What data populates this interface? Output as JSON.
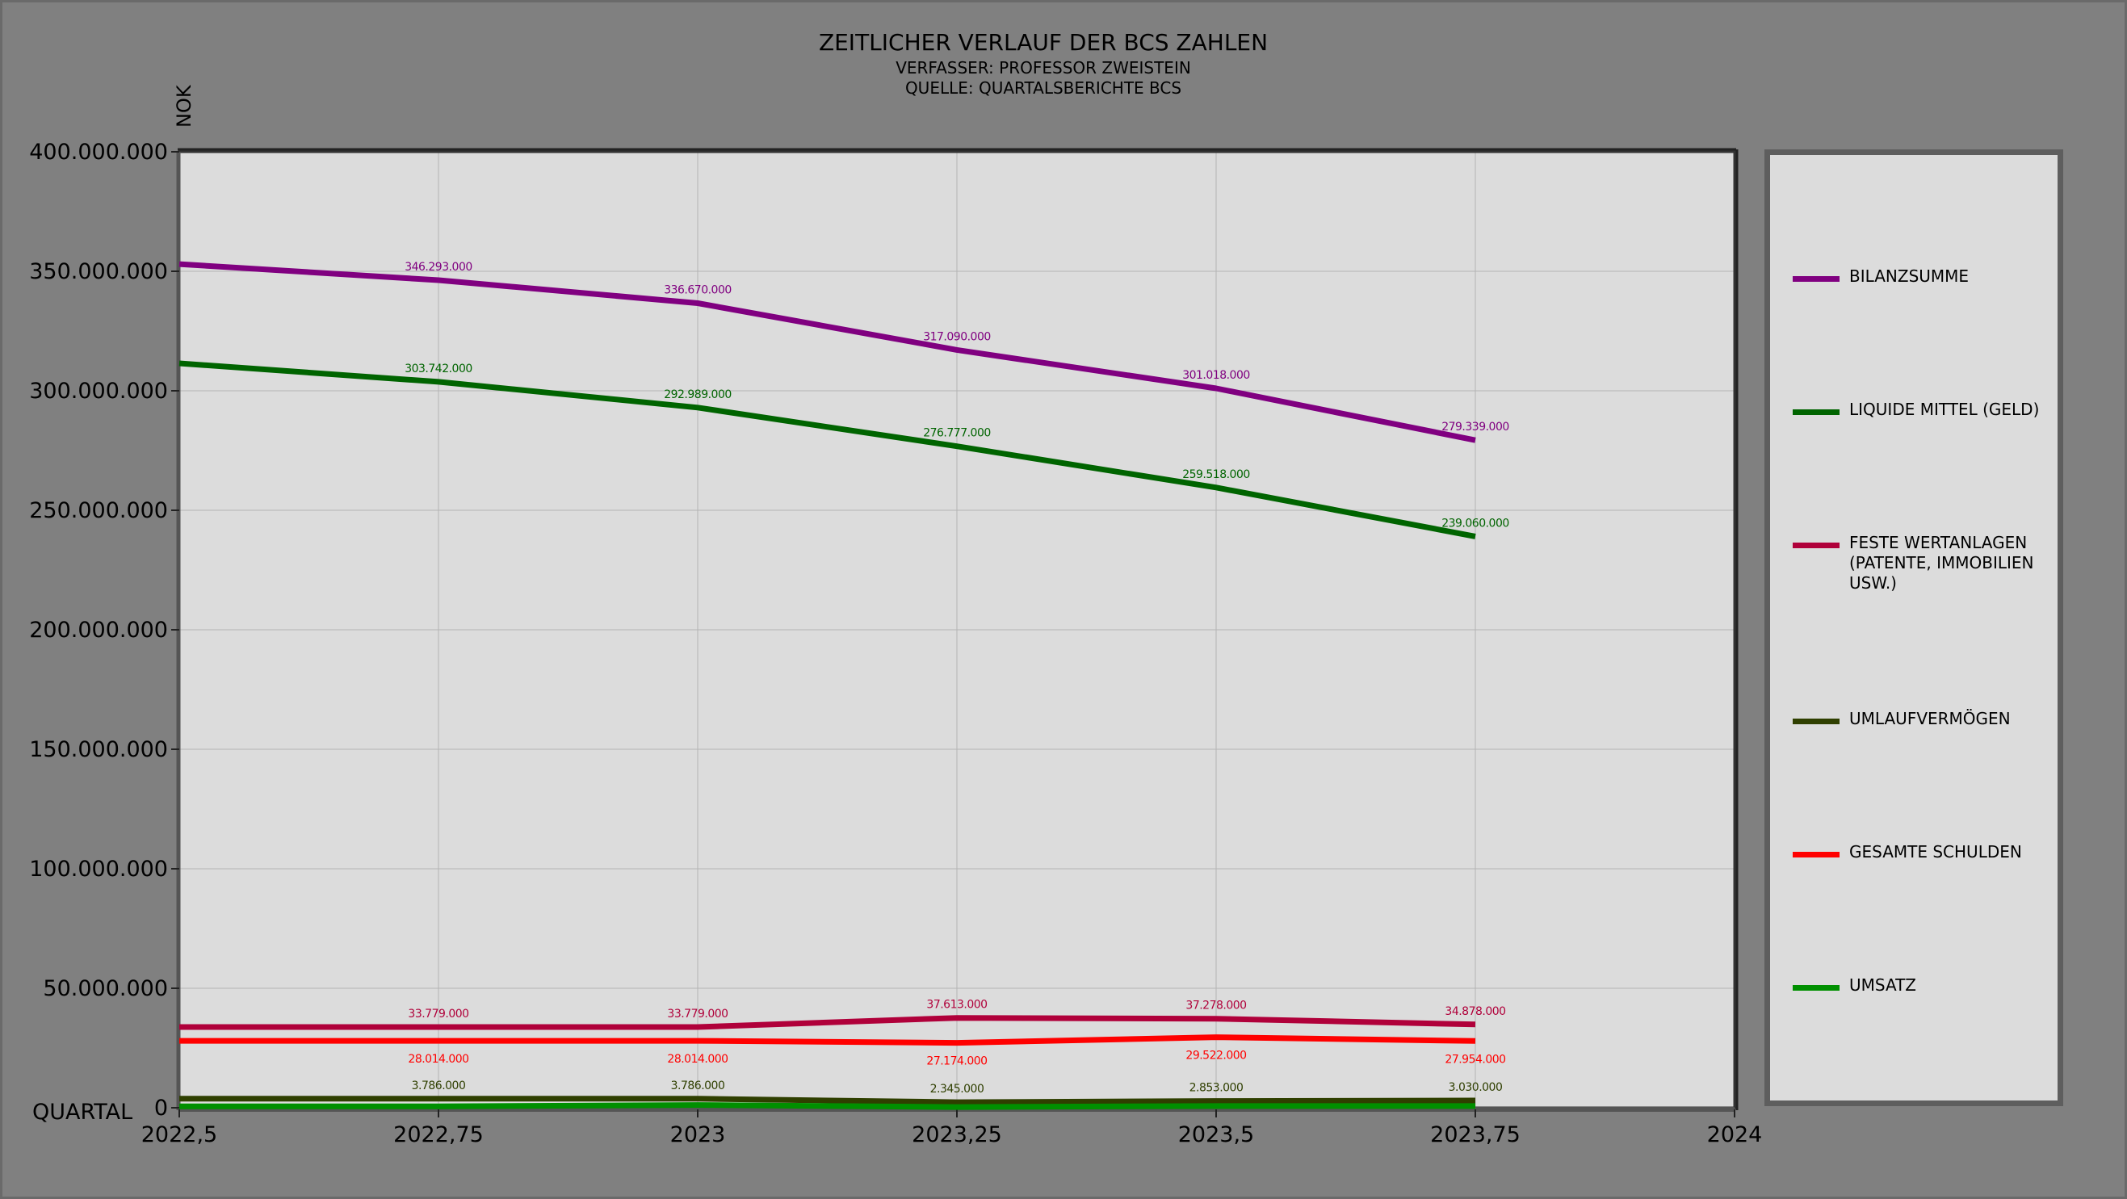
{
  "title": "ZEITLICHER VERLAUF DER BCS ZAHLEN",
  "subtitle_author": "VERFASSER: PROFESSOR ZWEISTEIN",
  "subtitle_source": "QUELLE: QUARTALSBERICHTE BCS",
  "colors": {
    "background": "#808080",
    "plot_background": "#dcdcdc",
    "grid": "#b4b4b4",
    "legend_border": "#5e5e5e"
  },
  "chart_data": {
    "type": "line",
    "title": "ZEITLICHER VERLAUF DER BCS ZAHLEN",
    "xlabel": "QUARTAL",
    "ylabel": "NOK",
    "xlim": [
      2022.5,
      2024
    ],
    "ylim": [
      0,
      400000000
    ],
    "grid": true,
    "legend_position": "right",
    "x_ticks": [
      2022.5,
      2022.75,
      2023,
      2023.25,
      2023.5,
      2023.75,
      2024
    ],
    "x_tick_labels": [
      "2022,5",
      "2022,75",
      "2023",
      "2023,25",
      "2023,5",
      "2023,75",
      "2024"
    ],
    "y_ticks": [
      0,
      50000000,
      100000000,
      150000000,
      200000000,
      250000000,
      300000000,
      350000000,
      400000000
    ],
    "y_tick_labels": [
      "0",
      "50.000.000",
      "100.000.000",
      "150.000.000",
      "200.000.000",
      "250.000.000",
      "300.000.000",
      "350.000.000",
      "400.000.000"
    ],
    "series": [
      {
        "name": "BILANZSUMME",
        "color": "#800080",
        "x": [
          2022.5,
          2022.75,
          2023,
          2023.25,
          2023.5,
          2023.75
        ],
        "values": [
          353000000,
          346293000,
          336670000,
          317090000,
          301018000,
          279339000
        ],
        "labels": [
          "",
          "346.293.000",
          "336.670.000",
          "317.090.000",
          "301.018.000",
          "279.339.000"
        ],
        "label_position": "above"
      },
      {
        "name": "LIQUIDE MITTEL (GELD)",
        "color": "#006400",
        "x": [
          2022.5,
          2022.75,
          2023,
          2023.25,
          2023.5,
          2023.75
        ],
        "values": [
          311500000,
          303742000,
          292989000,
          276777000,
          259518000,
          239060000
        ],
        "labels": [
          "",
          "303.742.000",
          "292.989.000",
          "276.777.000",
          "259.518.000",
          "239.060.000"
        ],
        "label_position": "above"
      },
      {
        "name": "FESTE WERTANLAGEN (PATENTE, IMMOBILIEN USW.)",
        "color": "#b0003a",
        "x": [
          2022.5,
          2022.75,
          2023,
          2023.25,
          2023.5,
          2023.75
        ],
        "values": [
          33779000,
          33779000,
          33779000,
          37613000,
          37278000,
          34878000
        ],
        "labels": [
          "",
          "33.779.000",
          "33.779.000",
          "37.613.000",
          "37.278.000",
          "34.878.000"
        ],
        "label_position": "above"
      },
      {
        "name": "UMLAUFVERMÖGEN",
        "color": "#2f3f00",
        "x": [
          2022.5,
          2022.75,
          2023,
          2023.25,
          2023.5,
          2023.75
        ],
        "values": [
          3786000,
          3786000,
          3786000,
          2345000,
          2853000,
          3030000
        ],
        "labels": [
          "",
          "3.786.000",
          "3.786.000",
          "2.345.000",
          "2.853.000",
          "3.030.000"
        ],
        "label_position": "above"
      },
      {
        "name": "GESAMTE SCHULDEN",
        "color": "#ff0000",
        "x": [
          2022.5,
          2022.75,
          2023,
          2023.25,
          2023.5,
          2023.75
        ],
        "values": [
          28014000,
          28014000,
          28014000,
          27174000,
          29522000,
          27954000
        ],
        "labels": [
          "",
          "28.014.000",
          "28.014.000",
          "27.174.000",
          "29.522.000",
          "27.954.000"
        ],
        "label_position": "below"
      },
      {
        "name": "UMSATZ",
        "color": "#009000",
        "x": [
          2022.5,
          2022.75,
          2023,
          2023.25,
          2023.5,
          2023.75
        ],
        "values": [
          600000,
          600000,
          1150000,
          300000,
          700000,
          700000
        ],
        "labels": [
          "",
          "",
          "",
          "",
          "",
          ""
        ],
        "label_position": "above"
      }
    ]
  }
}
